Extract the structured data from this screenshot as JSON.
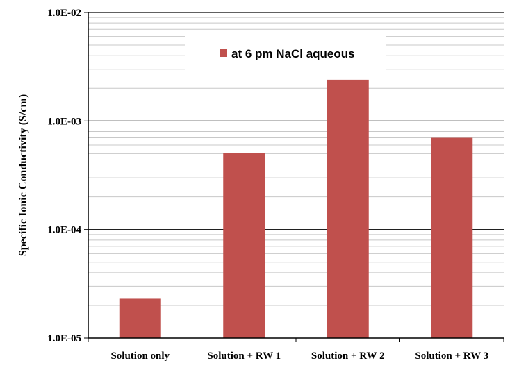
{
  "chart_data": {
    "type": "bar",
    "categories": [
      "Solution only",
      "Solution + RW 1",
      "Solution + RW 2",
      "Solution + RW 3"
    ],
    "series": [
      {
        "name": "at 6 pm NaCl aqueous",
        "values": [
          2.3e-05,
          0.00051,
          0.0024,
          0.0007
        ],
        "color": "#C0504D"
      }
    ],
    "ylabel": "Specific Ionic Conductivity (S/cm)",
    "xlabel": "",
    "yscale": "log",
    "ylim": [
      1e-05,
      0.01
    ],
    "ytick_labels": [
      "1.0E-05",
      "1.0E-04",
      "1.0E-03",
      "1.0E-02"
    ],
    "grid": true,
    "legend_position": "top-center"
  }
}
